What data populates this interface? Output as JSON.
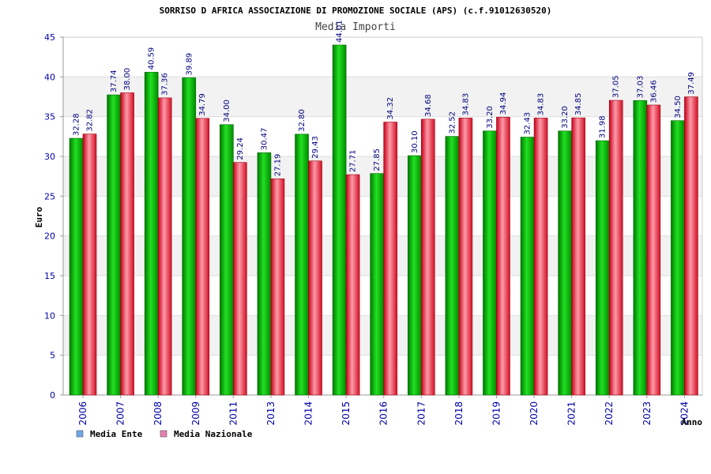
{
  "chart_data": {
    "type": "bar",
    "title": "SORRISO D AFRICA ASSOCIAZIONE DI PROMOZIONE SOCIALE (APS) (c.f.91012630520)",
    "subtitle": "Media Importi",
    "xlabel": "Anno",
    "ylabel": "Euro",
    "ylim": [
      0,
      45
    ],
    "yticks": [
      "0",
      "5",
      "10",
      "15",
      "20",
      "25",
      "30",
      "35",
      "40",
      "45"
    ],
    "grid": true,
    "legend_position": "bottom-left",
    "categories": [
      "2006",
      "2007",
      "2008",
      "2009",
      "2011",
      "2013",
      "2014",
      "2015",
      "2016",
      "2017",
      "2018",
      "2019",
      "2020",
      "2021",
      "2022",
      "2023",
      "2024"
    ],
    "series": [
      {
        "name": "Media Ente",
        "color": "#00b400",
        "legend_color": "#6fa8e8",
        "values": [
          32.28,
          37.74,
          40.59,
          39.89,
          34.0,
          30.47,
          32.8,
          44.01,
          27.85,
          30.1,
          32.52,
          33.2,
          32.43,
          33.2,
          31.98,
          37.03,
          34.5
        ],
        "labels": [
          "32.28",
          "37.74",
          "40.59",
          "39.89",
          "34.00",
          "30.47",
          "32.80",
          "44.01",
          "27.85",
          "30.10",
          "32.52",
          "33.20",
          "32.43",
          "33.20",
          "31.98",
          "37.03",
          "34.50"
        ]
      },
      {
        "name": "Media Nazionale",
        "color": "#e8273a",
        "legend_color": "#e87fb0",
        "values": [
          32.82,
          38.0,
          37.36,
          34.79,
          29.24,
          27.19,
          29.43,
          27.71,
          34.32,
          34.68,
          34.83,
          34.94,
          34.83,
          34.85,
          37.05,
          36.46,
          37.49
        ],
        "labels": [
          "32.82",
          "38.00",
          "37.36",
          "34.79",
          "29.24",
          "27.19",
          "29.43",
          "27.71",
          "34.32",
          "34.68",
          "34.83",
          "34.94",
          "34.83",
          "34.85",
          "37.05",
          "36.46",
          "37.49"
        ]
      }
    ]
  }
}
